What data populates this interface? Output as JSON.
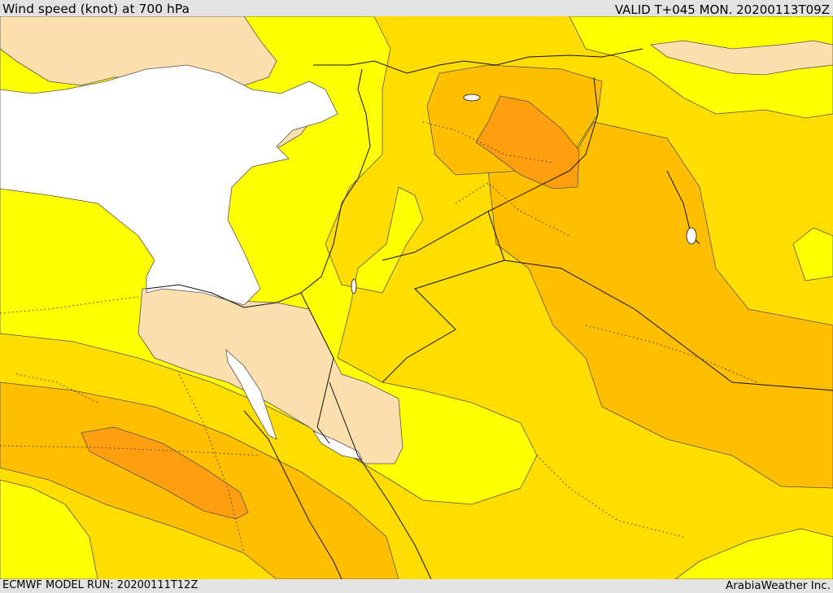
{
  "header": {
    "title": "Wind speed (knot) at 700 hPa",
    "valid": "VALID T+045 MON. 20200113T09Z"
  },
  "footer": {
    "model_run": "ECMWF MODEL RUN: 20200111T12Z",
    "brand": "ArabiaWeather Inc."
  },
  "map": {
    "variable": "wind speed",
    "units": "knot",
    "level_hPa": 700,
    "colors": {
      "sea": "#ffffff",
      "low_wind": "#fbdfac",
      "band_1": "#ffff00",
      "band_2": "#ffdd00",
      "band_3": "#ffbf00",
      "band_4": "#ff9f10"
    }
  }
}
